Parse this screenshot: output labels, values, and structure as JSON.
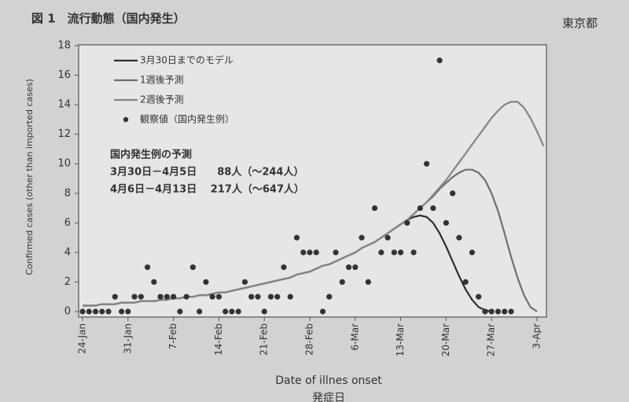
{
  "header": {
    "figure": "図 1　流行動態（国内発生）",
    "source": "東京都"
  },
  "chart_data": {
    "type": "line",
    "y_label": "Confirmed cases (other than imported cases)",
    "x_label": "Date of illnes onset",
    "x_label_sub": "発症日",
    "annotations": [
      "国内発生例の予測",
      "3月30日－4月5日　　88人（～244人）",
      "4月6日－4月13日　 217人（～647人）"
    ],
    "categories": [
      "24-Jan",
      null,
      null,
      null,
      null,
      null,
      null,
      "31-Jan",
      null,
      null,
      null,
      null,
      null,
      null,
      "7-Feb",
      null,
      null,
      null,
      null,
      null,
      null,
      "14-Feb",
      null,
      null,
      null,
      null,
      null,
      null,
      "21-Feb",
      null,
      null,
      null,
      null,
      null,
      null,
      "28-Feb",
      null,
      null,
      null,
      null,
      null,
      null,
      "6-Mar",
      null,
      null,
      null,
      null,
      null,
      null,
      "13-Mar",
      null,
      null,
      null,
      null,
      null,
      null,
      "20-Mar",
      null,
      null,
      null,
      null,
      null,
      null,
      "27-Mar",
      null,
      null,
      null,
      null,
      null,
      null,
      "3-Apr",
      null
    ],
    "ylim": [
      0,
      18
    ],
    "yticks": [
      0,
      2,
      4,
      6,
      8,
      10,
      12,
      14,
      16,
      18
    ],
    "legend": "upper left",
    "series": [
      {
        "name": "3月30日までのモデル",
        "type": "line",
        "color": "#2e2e2e",
        "values": [
          0.4,
          0.4,
          0.4,
          0.5,
          0.5,
          0.5,
          0.6,
          0.6,
          0.6,
          0.7,
          0.7,
          0.7,
          0.8,
          0.8,
          0.9,
          0.9,
          1.0,
          1.0,
          1.1,
          1.1,
          1.2,
          1.3,
          1.3,
          1.4,
          1.5,
          1.6,
          1.7,
          1.8,
          1.9,
          2.0,
          2.1,
          2.2,
          2.3,
          2.5,
          2.6,
          2.7,
          2.9,
          3.1,
          3.2,
          3.4,
          3.6,
          3.8,
          4.0,
          4.3,
          4.5,
          4.7,
          5.0,
          5.3,
          5.6,
          5.9,
          6.2,
          6.4,
          6.5,
          6.4,
          6.0,
          5.3,
          4.4,
          3.4,
          2.4,
          1.5,
          0.8,
          0.3,
          0.1,
          0,
          null,
          null,
          null,
          null,
          null,
          null,
          null,
          null
        ]
      },
      {
        "name": "1週後予測",
        "type": "line",
        "color": "#6e6e6e",
        "values": [
          0.4,
          0.4,
          0.4,
          0.5,
          0.5,
          0.5,
          0.6,
          0.6,
          0.6,
          0.7,
          0.7,
          0.7,
          0.8,
          0.8,
          0.9,
          0.9,
          1.0,
          1.0,
          1.1,
          1.1,
          1.2,
          1.3,
          1.3,
          1.4,
          1.5,
          1.6,
          1.7,
          1.8,
          1.9,
          2.0,
          2.1,
          2.2,
          2.3,
          2.5,
          2.6,
          2.7,
          2.9,
          3.1,
          3.2,
          3.4,
          3.6,
          3.8,
          4.0,
          4.3,
          4.5,
          4.7,
          5.0,
          5.3,
          5.6,
          5.9,
          6.2,
          6.6,
          7.0,
          7.4,
          7.8,
          8.3,
          8.7,
          9.1,
          9.4,
          9.6,
          9.6,
          9.4,
          8.9,
          8.0,
          6.8,
          5.3,
          3.7,
          2.3,
          1.1,
          0.3,
          0,
          null
        ]
      },
      {
        "name": "2週後予測",
        "type": "line",
        "color": "#858585",
        "values": [
          0.4,
          0.4,
          0.4,
          0.5,
          0.5,
          0.5,
          0.6,
          0.6,
          0.6,
          0.7,
          0.7,
          0.7,
          0.8,
          0.8,
          0.9,
          0.9,
          1.0,
          1.0,
          1.1,
          1.1,
          1.2,
          1.3,
          1.3,
          1.4,
          1.5,
          1.6,
          1.7,
          1.8,
          1.9,
          2.0,
          2.1,
          2.2,
          2.3,
          2.5,
          2.6,
          2.7,
          2.9,
          3.1,
          3.2,
          3.4,
          3.6,
          3.8,
          4.0,
          4.3,
          4.5,
          4.7,
          5.0,
          5.3,
          5.6,
          5.9,
          6.2,
          6.6,
          7.0,
          7.4,
          7.9,
          8.4,
          8.9,
          9.5,
          10.1,
          10.7,
          11.3,
          11.9,
          12.5,
          13.1,
          13.6,
          14.0,
          14.2,
          14.2,
          13.8,
          13.1,
          12.2,
          11.2
        ]
      },
      {
        "name": "観察値（国内発生例）",
        "type": "scatter",
        "color": "#333333",
        "values": [
          0,
          0,
          0,
          0,
          0,
          1,
          0,
          0,
          1,
          1,
          3,
          2,
          1,
          1,
          1,
          0,
          1,
          3,
          0,
          2,
          1,
          1,
          0,
          0,
          0,
          2,
          1,
          1,
          0,
          1,
          1,
          3,
          1,
          5,
          4,
          4,
          4,
          0,
          1,
          4,
          2,
          3,
          3,
          5,
          2,
          7,
          4,
          5,
          4,
          4,
          6,
          4,
          7,
          10,
          7,
          17,
          6,
          8,
          5,
          2,
          4,
          1,
          0,
          0,
          0,
          0,
          0,
          null,
          null,
          null,
          null,
          null
        ]
      }
    ]
  }
}
